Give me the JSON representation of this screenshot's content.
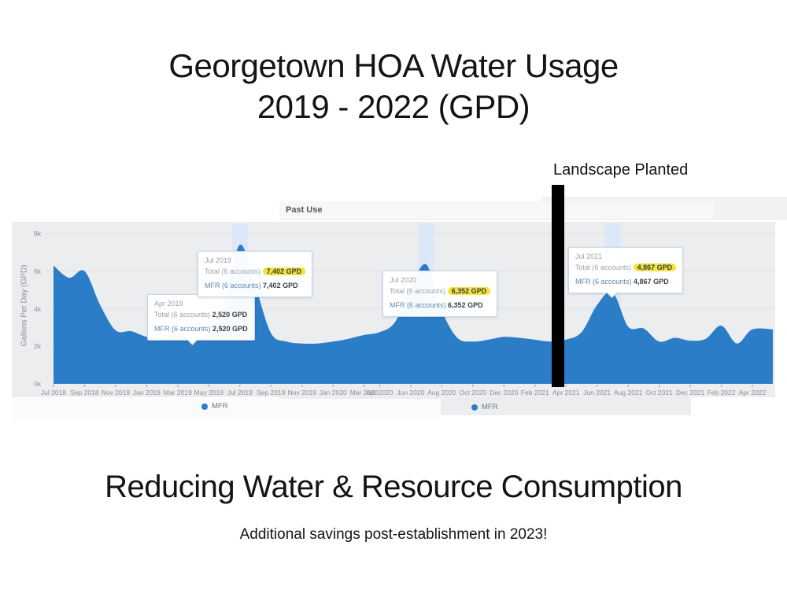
{
  "page": {
    "title_line1": "Georgetown HOA Water Usage",
    "title_line2": "2019 - 2022 (GPD)",
    "annotation": "Landscape Planted",
    "headline": "Reducing Water & Resource Consumption",
    "subheadline": "Additional savings post-establishment in 2023!"
  },
  "chart_panel": {
    "tab_label": "Past Use",
    "legend_label": "MFR",
    "legend_color": "#2b7dc8"
  },
  "chart_data": {
    "type": "area",
    "title": "Georgetown HOA Water Usage 2019 - 2022 (GPD)",
    "ylabel": "Gallons Per Day (GPD)",
    "xlabel": "",
    "ylim": [
      0,
      8600
    ],
    "grid": true,
    "legend_position": "bottom",
    "x": [
      "Jul 2018",
      "Aug 2018",
      "Sep 2018",
      "Oct 2018",
      "Nov 2018",
      "Dec 2018",
      "Jan 2019",
      "Feb 2019",
      "Mar 2019",
      "Apr 2019",
      "May 2019",
      "Jun 2019",
      "Jul 2019",
      "Aug 2019",
      "Sep 2019",
      "Oct 2019",
      "Nov 2019",
      "Dec 2019",
      "Jan 2020",
      "Feb 2020",
      "Mar 2020",
      "Apr 2020",
      "May 2020",
      "Jun 2020",
      "Jul 2020",
      "Aug 2020",
      "Sep 2020",
      "Oct 2020",
      "Nov 2020",
      "Dec 2020",
      "Jan 2021",
      "Feb 2021",
      "Mar 2021",
      "Apr 2021",
      "May 2021",
      "Jun 2021",
      "Jul 2021",
      "Aug 2021",
      "Sep 2021",
      "Oct 2021",
      "Nov 2021",
      "Dec 2021",
      "Jan 2022",
      "Feb 2022",
      "Mar 2022",
      "Apr 2022"
    ],
    "series": [
      {
        "name": "MFR",
        "color": "#2b7dc8",
        "values": [
          6300,
          5650,
          6000,
          4200,
          2850,
          2800,
          2500,
          2450,
          2600,
          2520,
          2650,
          4300,
          7402,
          5200,
          2700,
          2250,
          2150,
          2150,
          2250,
          2400,
          2600,
          2750,
          3300,
          5100,
          6352,
          3900,
          2450,
          2250,
          2350,
          2500,
          2450,
          2350,
          2250,
          2350,
          2750,
          4200,
          4867,
          3050,
          2950,
          2250,
          2450,
          2300,
          2400,
          3100,
          2150,
          2900
        ]
      }
    ],
    "yticks": {
      "labels": [
        "0k",
        "2k",
        "4k",
        "6k",
        "8k"
      ],
      "values": [
        0,
        2000,
        4000,
        6000,
        8000
      ]
    },
    "xticks": [
      {
        "i": 0,
        "label": "Jul 2018"
      },
      {
        "i": 2,
        "label": "Sep 2018"
      },
      {
        "i": 4,
        "label": "Nov 2018"
      },
      {
        "i": 6,
        "label": "Jan 2019"
      },
      {
        "i": 8,
        "label": "Mar 2019"
      },
      {
        "i": 10,
        "label": "May 2019"
      },
      {
        "i": 12,
        "label": "Jul 2019"
      },
      {
        "i": 14,
        "label": "Sep 2019"
      },
      {
        "i": 16,
        "label": "Nov 2019"
      },
      {
        "i": 18,
        "label": "Jan 2020"
      },
      {
        "i": 20,
        "label": "Mar 2020"
      },
      {
        "i": 21,
        "label": "Apr 2020"
      },
      {
        "i": 23,
        "label": "Jun 2020"
      },
      {
        "i": 25,
        "label": "Aug 2020"
      },
      {
        "i": 27,
        "label": "Oct 2020"
      },
      {
        "i": 29,
        "label": "Dec 2020"
      },
      {
        "i": 31,
        "label": "Feb 2021"
      },
      {
        "i": 33,
        "label": "Apr 2021"
      },
      {
        "i": 35,
        "label": "Jun 2021"
      },
      {
        "i": 37,
        "label": "Aug 2021"
      },
      {
        "i": 39,
        "label": "Oct 2021"
      },
      {
        "i": 41,
        "label": "Dec 2021"
      },
      {
        "i": 43,
        "label": "Feb 2022"
      },
      {
        "i": 45,
        "label": "Apr 2022"
      }
    ],
    "highlight_indices": [
      12,
      24,
      36
    ],
    "highlight_color": "#dce7f8",
    "annotated_points": [
      {
        "month": "Apr 2019",
        "value_gpd": 2520
      },
      {
        "month": "Jul 2019",
        "value_gpd": 7402
      },
      {
        "month": "Jul 2020",
        "value_gpd": 6352
      },
      {
        "month": "Jul 2021",
        "value_gpd": 4867
      }
    ],
    "vertical_marker": {
      "label": "Landscape Planted",
      "month": "Apr 2021"
    }
  },
  "tooltips": [
    {
      "month": "Apr 2019",
      "total_label": "Total (6 accounts)",
      "total_value": "2,520 GPD",
      "mfr_label": "MFR (6 accounts)",
      "mfr_value": "2,520 GPD"
    },
    {
      "month": "Jul 2019",
      "total_label": "Total (6 accounts)",
      "total_value": "7,402 GPD",
      "mfr_label": "MFR (6 accounts)",
      "mfr_value": "7,402 GPD"
    },
    {
      "month": "Jul 2020",
      "total_label": "Total (6 accounts)",
      "total_value": "6,352 GPD",
      "mfr_label": "MFR (6 accounts)",
      "mfr_value": "6,352 GPD"
    },
    {
      "month": "Jul 2021",
      "total_label": "Total (6 accounts)",
      "total_value": "4,867 GPD",
      "mfr_label": "MFR (6 accounts)",
      "mfr_value": "4,867 GPD"
    }
  ],
  "colors": {
    "area_blue": "#2b7dc8",
    "panel_bg": "#ebedef",
    "highlight_band": "#dce7f8",
    "tooltip_highlight": "#f4e33c",
    "marker_bar": "#000000"
  }
}
